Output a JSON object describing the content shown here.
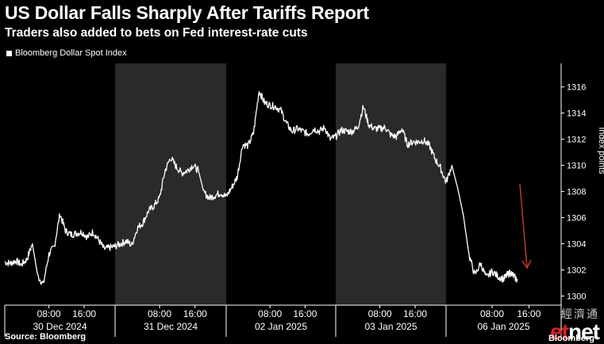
{
  "header": {
    "title": "US Dollar Falls Sharply After Tariffs Report",
    "subtitle": "Traders also added to bets on Fed interest-rate cuts"
  },
  "legend": {
    "label": "Bloomberg Dollar Spot Index"
  },
  "footer": {
    "source": "Source: Bloomberg",
    "brand": "Bloomberg"
  },
  "watermark": {
    "chinese": "經濟通",
    "logo_a": "et",
    "logo_b": "net"
  },
  "colors": {
    "background": "#000000",
    "shaded_session": "#2a2a2a",
    "series": "#ffffff",
    "annotation_arrow": "#c0392b"
  },
  "chart_data": {
    "type": "line",
    "title": "US Dollar Falls Sharply After Tariffs Report",
    "subtitle": "Traders also added to bets on Fed interest-rate cuts",
    "ylabel": "Index points",
    "ylim": [
      1299.3,
      1317.8
    ],
    "y_ticks": [
      1300,
      1302,
      1304,
      1306,
      1308,
      1310,
      1312,
      1314,
      1316
    ],
    "grid": false,
    "legend_placement": "top-left",
    "x_tick_labels": [
      "08:00",
      "16:00",
      "08:00",
      "16:00",
      "08:00",
      "16:00",
      "08:00",
      "16:00",
      "08:00",
      "16:00"
    ],
    "session_labels": [
      "30 Dec 2024",
      "31 Dec 2024",
      "02 Jan 2025",
      "03 Jan 2025",
      "06 Jan 2025"
    ],
    "sessions": [
      {
        "label": "30 Dec 2024",
        "shaded": false
      },
      {
        "label": "31 Dec 2024",
        "shaded": true
      },
      {
        "label": "02 Jan 2025",
        "shaded": false
      },
      {
        "label": "03 Jan 2025",
        "shaded": true
      },
      {
        "label": "06 Jan 2025",
        "shaded": false
      }
    ],
    "series": [
      {
        "name": "Bloomberg Dollar Spot Index",
        "x_sessions": [
          0,
          0.05,
          0.1,
          0.15,
          0.2,
          0.25,
          0.3,
          0.35,
          0.4,
          0.45,
          0.5,
          0.55,
          0.6,
          0.65,
          0.7,
          0.75,
          0.8,
          0.85,
          0.9,
          0.95,
          1.0,
          1.05,
          1.1,
          1.15,
          1.2,
          1.25,
          1.3,
          1.35,
          1.4,
          1.45,
          1.5,
          1.55,
          1.6,
          1.65,
          1.7,
          1.75,
          1.8,
          1.85,
          1.9,
          1.95,
          2.0,
          2.05,
          2.1,
          2.15,
          2.2,
          2.25,
          2.3,
          2.35,
          2.4,
          2.45,
          2.5,
          2.55,
          2.6,
          2.65,
          2.7,
          2.75,
          2.8,
          2.85,
          2.9,
          2.95,
          3.0,
          3.05,
          3.1,
          3.15,
          3.2,
          3.25,
          3.3,
          3.35,
          3.4,
          3.45,
          3.5,
          3.55,
          3.6,
          3.65,
          3.7,
          3.75,
          3.8,
          3.85,
          3.9,
          3.95,
          4.0,
          4.05,
          4.1,
          4.15,
          4.2,
          4.25,
          4.3,
          4.35,
          4.4,
          4.45,
          4.5,
          4.53,
          4.56,
          4.59,
          4.62
        ],
        "values": [
          1302.6,
          1302.5,
          1302.7,
          1302.4,
          1302.8,
          1304.0,
          1301.5,
          1300.9,
          1303.2,
          1303.8,
          1306.3,
          1305.0,
          1304.7,
          1304.8,
          1304.9,
          1304.5,
          1304.9,
          1304.3,
          1303.6,
          1303.7,
          1303.8,
          1304.0,
          1304.2,
          1303.9,
          1305.2,
          1305.6,
          1306.5,
          1306.9,
          1307.5,
          1309.6,
          1310.6,
          1309.9,
          1309.4,
          1309.6,
          1310.0,
          1309.6,
          1307.9,
          1307.5,
          1307.7,
          1307.9,
          1307.6,
          1308.3,
          1309.1,
          1311.6,
          1311.5,
          1312.5,
          1315.7,
          1314.8,
          1314.6,
          1314.5,
          1314.2,
          1313.2,
          1312.6,
          1312.8,
          1312.6,
          1312.4,
          1312.8,
          1312.6,
          1312.9,
          1312.0,
          1312.2,
          1312.7,
          1312.6,
          1312.6,
          1312.9,
          1314.5,
          1313.1,
          1312.8,
          1312.8,
          1312.9,
          1312.3,
          1312.2,
          1312.8,
          1311.6,
          1311.8,
          1311.8,
          1311.9,
          1311.5,
          1310.5,
          1309.8,
          1308.7,
          1310.0,
          1308.3,
          1306.2,
          1303.1,
          1301.6,
          1302.5,
          1301.4,
          1301.9,
          1301.5,
          1301.3,
          1301.6,
          1301.8,
          1301.5,
          1301.2
        ]
      }
    ],
    "annotation": {
      "type": "arrow",
      "color": "#c0392b"
    }
  }
}
